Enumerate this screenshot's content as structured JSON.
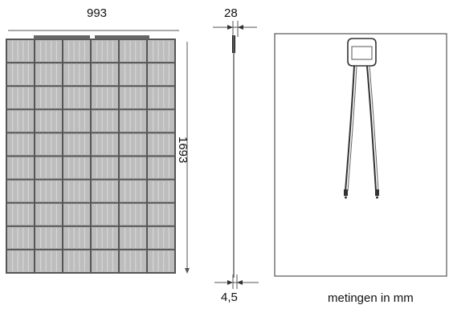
{
  "dimensions": {
    "width": "993",
    "height": "1693",
    "frame_thickness": "28",
    "glass_thickness": "4,5"
  },
  "note": "metingen in mm",
  "colors": {
    "line": "#333333",
    "cell_fill": "#bdbdbd",
    "cell_highlight": "#d6d6d6",
    "frame": "#4a4a4a",
    "panel_back": "#ffffff"
  },
  "panel_grid": {
    "columns": 6,
    "rows": 10
  }
}
